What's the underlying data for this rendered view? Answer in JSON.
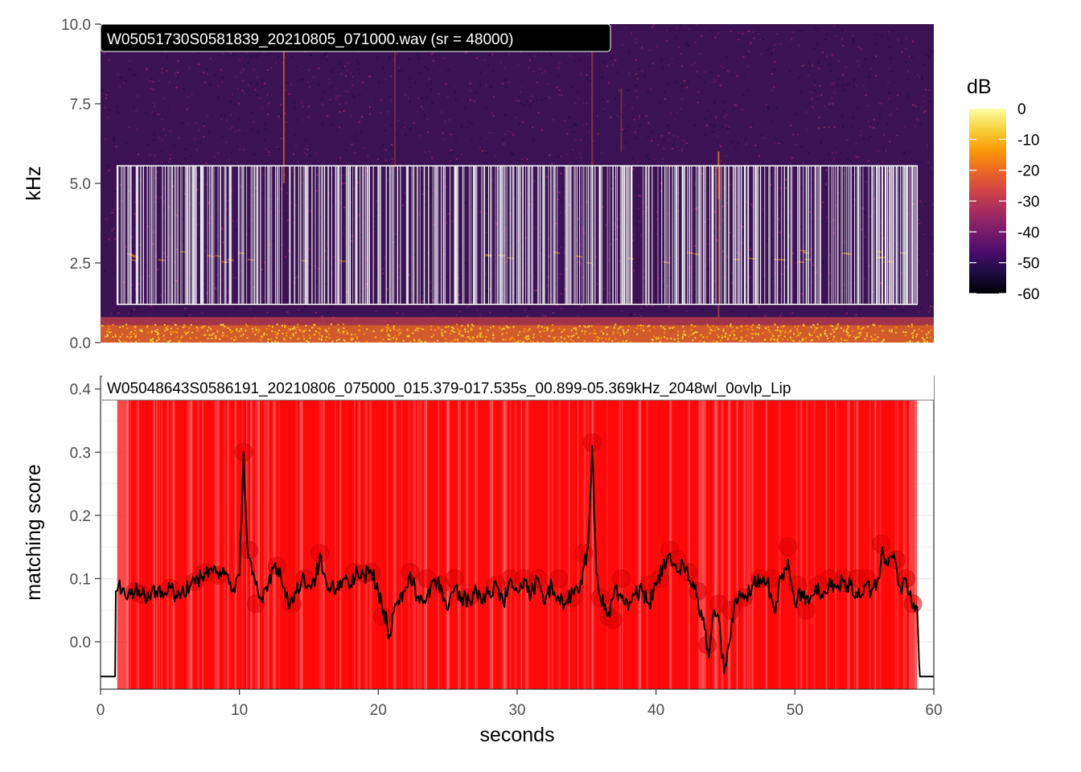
{
  "chart_data": [
    {
      "type": "heatmap",
      "panel_label": "W05051730S0581839_20210805_071000.wav (sr = 48000)",
      "ylabel": "kHz",
      "xlim": [
        0,
        60
      ],
      "ylim": [
        0,
        10
      ],
      "y_ticks": [
        "0.0",
        "2.5",
        "5.0",
        "7.5",
        "10.0"
      ],
      "colorbar": {
        "title": "dB",
        "range": [
          -60,
          0
        ],
        "ticks": [
          "0",
          "-10",
          "-20",
          "-30",
          "-40",
          "-50",
          "-60"
        ],
        "colors": [
          "#000004",
          "#1b0c41",
          "#4a0c6b",
          "#781c6d",
          "#a52c60",
          "#cf4446",
          "#ed6925",
          "#fb9b06",
          "#f7d13d",
          "#fcffa4"
        ]
      },
      "detection_box": {
        "x_start": 1.2,
        "x_end": 58.8,
        "freq_low": 1.2,
        "freq_high": 5.55
      }
    },
    {
      "type": "line",
      "panel_label": "W05048643S0586191_20210806_075000_015.379-017.535s_00.899-05.369kHz_2048wl_0ovlp_Lip",
      "xlabel": "seconds",
      "ylabel": "matching score",
      "xlim": [
        0,
        60
      ],
      "ylim": [
        -0.075,
        0.42
      ],
      "x_ticks": [
        "0",
        "10",
        "20",
        "30",
        "40",
        "50",
        "60"
      ],
      "y_ticks": [
        "0.0",
        "0.1",
        "0.2",
        "0.3",
        "0.4"
      ],
      "highlight_region": [
        1.2,
        58.8
      ],
      "highlight_color": "#ff0000",
      "line_color": "#000000",
      "peak_color": "#e00000",
      "series_anchor_points": [
        [
          0,
          -0.055
        ],
        [
          1.05,
          -0.055
        ],
        [
          1.1,
          0.08
        ],
        [
          1.3,
          0.09
        ],
        [
          1.6,
          0.085
        ],
        [
          2.0,
          0.075
        ],
        [
          2.5,
          0.08
        ],
        [
          3.0,
          0.075
        ],
        [
          3.5,
          0.07
        ],
        [
          4.0,
          0.08
        ],
        [
          4.5,
          0.07
        ],
        [
          5.0,
          0.085
        ],
        [
          5.5,
          0.07
        ],
        [
          6.0,
          0.075
        ],
        [
          6.5,
          0.09
        ],
        [
          7.0,
          0.1
        ],
        [
          7.5,
          0.11
        ],
        [
          8.0,
          0.115
        ],
        [
          8.5,
          0.1
        ],
        [
          9.0,
          0.11
        ],
        [
          9.5,
          0.08
        ],
        [
          10.0,
          0.105
        ],
        [
          10.3,
          0.3
        ],
        [
          10.6,
          0.14
        ],
        [
          11.0,
          0.11
        ],
        [
          11.5,
          0.07
        ],
        [
          12.0,
          0.08
        ],
        [
          12.5,
          0.12
        ],
        [
          13.0,
          0.1
        ],
        [
          13.5,
          0.06
        ],
        [
          14.0,
          0.08
        ],
        [
          14.5,
          0.1
        ],
        [
          15.0,
          0.09
        ],
        [
          15.5,
          0.1
        ],
        [
          15.8,
          0.14
        ],
        [
          16.2,
          0.1
        ],
        [
          16.8,
          0.08
        ],
        [
          17.5,
          0.1
        ],
        [
          18.0,
          0.09
        ],
        [
          18.5,
          0.11
        ],
        [
          19.0,
          0.105
        ],
        [
          19.5,
          0.11
        ],
        [
          20.0,
          0.08
        ],
        [
          20.4,
          0.05
        ],
        [
          20.8,
          0.01
        ],
        [
          21.2,
          0.06
        ],
        [
          21.8,
          0.08
        ],
        [
          22.3,
          0.11
        ],
        [
          22.8,
          0.07
        ],
        [
          23.3,
          0.065
        ],
        [
          24.0,
          0.1
        ],
        [
          24.5,
          0.09
        ],
        [
          25.0,
          0.05
        ],
        [
          25.5,
          0.085
        ],
        [
          26.0,
          0.07
        ],
        [
          26.6,
          0.065
        ],
        [
          27.0,
          0.09
        ],
        [
          27.5,
          0.06
        ],
        [
          28.0,
          0.08
        ],
        [
          28.5,
          0.09
        ],
        [
          29.0,
          0.06
        ],
        [
          29.5,
          0.1
        ],
        [
          30.0,
          0.08
        ],
        [
          30.5,
          0.1
        ],
        [
          31.0,
          0.075
        ],
        [
          31.5,
          0.1
        ],
        [
          32.0,
          0.06
        ],
        [
          32.5,
          0.09
        ],
        [
          33.0,
          0.07
        ],
        [
          33.5,
          0.06
        ],
        [
          34.0,
          0.08
        ],
        [
          34.5,
          0.08
        ],
        [
          34.8,
          0.12
        ],
        [
          35.1,
          0.15
        ],
        [
          35.4,
          0.31
        ],
        [
          35.7,
          0.11
        ],
        [
          36.0,
          0.07
        ],
        [
          36.5,
          0.04
        ],
        [
          37.0,
          0.08
        ],
        [
          37.5,
          0.07
        ],
        [
          38.0,
          0.05
        ],
        [
          38.5,
          0.075
        ],
        [
          39.0,
          0.08
        ],
        [
          39.5,
          0.06
        ],
        [
          40.0,
          0.09
        ],
        [
          40.5,
          0.12
        ],
        [
          41.0,
          0.14
        ],
        [
          41.5,
          0.11
        ],
        [
          42.0,
          0.12
        ],
        [
          42.5,
          0.09
        ],
        [
          43.0,
          0.07
        ],
        [
          43.5,
          0.02
        ],
        [
          43.8,
          -0.025
        ],
        [
          44.2,
          0.05
        ],
        [
          44.5,
          0.04
        ],
        [
          44.9,
          -0.05
        ],
        [
          45.3,
          0.0
        ],
        [
          45.6,
          0.05
        ],
        [
          46.0,
          0.08
        ],
        [
          46.5,
          0.07
        ],
        [
          47.0,
          0.09
        ],
        [
          47.5,
          0.1
        ],
        [
          48.0,
          0.095
        ],
        [
          48.5,
          0.05
        ],
        [
          49.0,
          0.1
        ],
        [
          49.5,
          0.13
        ],
        [
          50.0,
          0.06
        ],
        [
          50.5,
          0.08
        ],
        [
          51.0,
          0.06
        ],
        [
          51.5,
          0.09
        ],
        [
          52.0,
          0.07
        ],
        [
          52.5,
          0.1
        ],
        [
          53.0,
          0.085
        ],
        [
          53.5,
          0.095
        ],
        [
          54.0,
          0.09
        ],
        [
          54.5,
          0.07
        ],
        [
          55.0,
          0.09
        ],
        [
          55.5,
          0.08
        ],
        [
          56.0,
          0.1
        ],
        [
          56.3,
          0.15
        ],
        [
          56.7,
          0.12
        ],
        [
          57.2,
          0.13
        ],
        [
          57.6,
          0.085
        ],
        [
          58.0,
          0.1
        ],
        [
          58.4,
          0.06
        ],
        [
          58.8,
          0.055
        ],
        [
          59.0,
          -0.055
        ],
        [
          60.0,
          -0.055
        ]
      ],
      "peaks": [
        [
          2.5,
          0.08
        ],
        [
          3.0,
          0.075
        ],
        [
          5.0,
          0.085
        ],
        [
          6.8,
          0.095
        ],
        [
          7.5,
          0.11
        ],
        [
          8.5,
          0.105
        ],
        [
          10.3,
          0.3
        ],
        [
          10.7,
          0.145
        ],
        [
          11.2,
          0.06
        ],
        [
          12.7,
          0.12
        ],
        [
          13.8,
          0.06
        ],
        [
          14.7,
          0.1
        ],
        [
          15.8,
          0.14
        ],
        [
          18.3,
          0.11
        ],
        [
          19.0,
          0.108
        ],
        [
          19.5,
          0.11
        ],
        [
          20.3,
          0.04
        ],
        [
          22.3,
          0.11
        ],
        [
          23.5,
          0.1
        ],
        [
          24.5,
          0.09
        ],
        [
          25.5,
          0.1
        ],
        [
          26.5,
          0.07
        ],
        [
          28.5,
          0.09
        ],
        [
          29.5,
          0.1
        ],
        [
          30.5,
          0.1
        ],
        [
          31.5,
          0.1
        ],
        [
          33.0,
          0.1
        ],
        [
          34.0,
          0.07
        ],
        [
          34.8,
          0.14
        ],
        [
          35.4,
          0.315
        ],
        [
          36.0,
          0.07
        ],
        [
          36.6,
          0.04
        ],
        [
          36.9,
          0.035
        ],
        [
          37.5,
          0.1
        ],
        [
          39.5,
          0.09
        ],
        [
          40.3,
          0.1
        ],
        [
          41.0,
          0.145
        ],
        [
          41.5,
          0.13
        ],
        [
          42.3,
          0.11
        ],
        [
          43.0,
          0.08
        ],
        [
          43.7,
          -0.005
        ],
        [
          44.5,
          0.06
        ],
        [
          45.4,
          0.05
        ],
        [
          46.3,
          0.07
        ],
        [
          47.5,
          0.1
        ],
        [
          48.3,
          0.1
        ],
        [
          49.5,
          0.15
        ],
        [
          50.2,
          0.09
        ],
        [
          50.8,
          0.05
        ],
        [
          51.7,
          0.09
        ],
        [
          52.5,
          0.1
        ],
        [
          53.5,
          0.1
        ],
        [
          54.5,
          0.1
        ],
        [
          55.2,
          0.1
        ],
        [
          56.2,
          0.155
        ],
        [
          57.3,
          0.13
        ],
        [
          58.0,
          0.1
        ],
        [
          58.5,
          0.06
        ]
      ]
    }
  ]
}
